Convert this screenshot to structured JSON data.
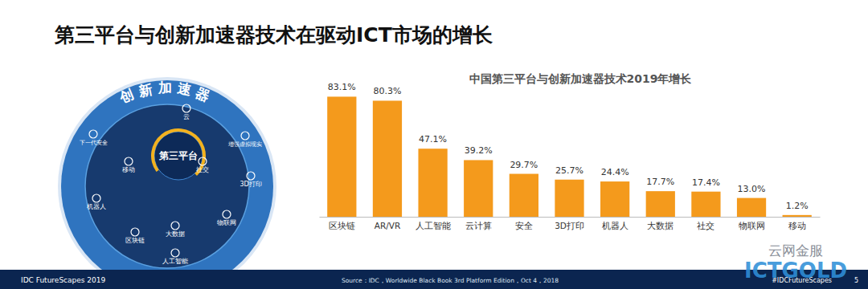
{
  "slide": {
    "title": "第三平台与创新加速器技术在驱动ICT市场的增长",
    "diagram": {
      "ring_title": "创新加速器",
      "center": "第三平台",
      "items": [
        "云",
        "增强虚拟现实",
        "社交",
        "3D打印",
        "物联网",
        "人工智能",
        "大数据",
        "区块链",
        "机器人",
        "移动",
        "下一代安全"
      ]
    },
    "footer": {
      "left": "IDC FutureScapes 2019",
      "source": "Source：IDC，Worldwide Black Book 3rd Platform Edition，Oct 4，2018",
      "hashtag": "#IDCFutureScapes",
      "page": 5
    },
    "watermark": {
      "cn": "云网金服",
      "en": "ICTGOLD"
    }
  },
  "chart_data": {
    "type": "bar",
    "title": "中国第三平台与创新加速器技术2019年增长",
    "categories": [
      "区块链",
      "AR/VR",
      "人工智能",
      "云计算",
      "安全",
      "3D打印",
      "机器人",
      "大数据",
      "社交",
      "物联网",
      "移动"
    ],
    "values": [
      83.1,
      80.3,
      47.1,
      39.2,
      29.7,
      25.7,
      24.4,
      17.7,
      17.4,
      13.0,
      1.2
    ],
    "value_labels": [
      "83.1%",
      "80.3%",
      "47.1%",
      "39.2%",
      "29.7%",
      "25.7%",
      "24.4%",
      "17.7%",
      "17.4%",
      "13.0%",
      "1.2%"
    ],
    "color": "#f49a1c",
    "ylim": [
      0,
      90
    ],
    "data_labels": true,
    "tick_labels": "x",
    "grid": false
  }
}
